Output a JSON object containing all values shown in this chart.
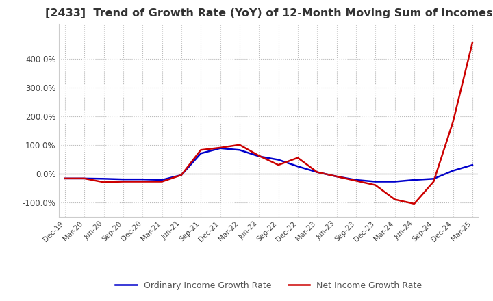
{
  "title": "[2433]  Trend of Growth Rate (YoY) of 12-Month Moving Sum of Incomes",
  "title_fontsize": 11.5,
  "ylim": [
    -1.5,
    5.2
  ],
  "yticks": [
    -1.0,
    0.0,
    1.0,
    2.0,
    3.0,
    4.0
  ],
  "ytick_labels": [
    "-100.0%",
    "0.0%",
    "100.0%",
    "200.0%",
    "300.0%",
    "400.0%"
  ],
  "background_color": "#ffffff",
  "grid_color": "#bbbbbb",
  "ordinary_color": "#0000cc",
  "net_color": "#cc0000",
  "legend_ordinary": "Ordinary Income Growth Rate",
  "legend_net": "Net Income Growth Rate",
  "dates": [
    "Dec-19",
    "Mar-20",
    "Jun-20",
    "Sep-20",
    "Dec-20",
    "Mar-21",
    "Jun-21",
    "Sep-21",
    "Dec-21",
    "Mar-22",
    "Jun-22",
    "Sep-22",
    "Dec-22",
    "Mar-23",
    "Jun-23",
    "Sep-23",
    "Dec-23",
    "Mar-24",
    "Jun-24",
    "Sep-24",
    "Dec-24",
    "Mar-25"
  ],
  "ordinary_values": [
    -0.17,
    -0.17,
    -0.18,
    -0.2,
    -0.2,
    -0.22,
    -0.05,
    0.7,
    0.88,
    0.82,
    0.6,
    0.48,
    0.25,
    0.05,
    -0.1,
    -0.22,
    -0.28,
    -0.28,
    -0.22,
    -0.18,
    0.1,
    0.3
  ],
  "net_values": [
    -0.17,
    -0.17,
    -0.3,
    -0.28,
    -0.28,
    -0.28,
    -0.05,
    0.82,
    0.9,
    1.0,
    0.62,
    0.3,
    0.55,
    0.05,
    -0.1,
    -0.25,
    -0.4,
    -0.9,
    -1.05,
    -0.28,
    1.8,
    4.55
  ]
}
